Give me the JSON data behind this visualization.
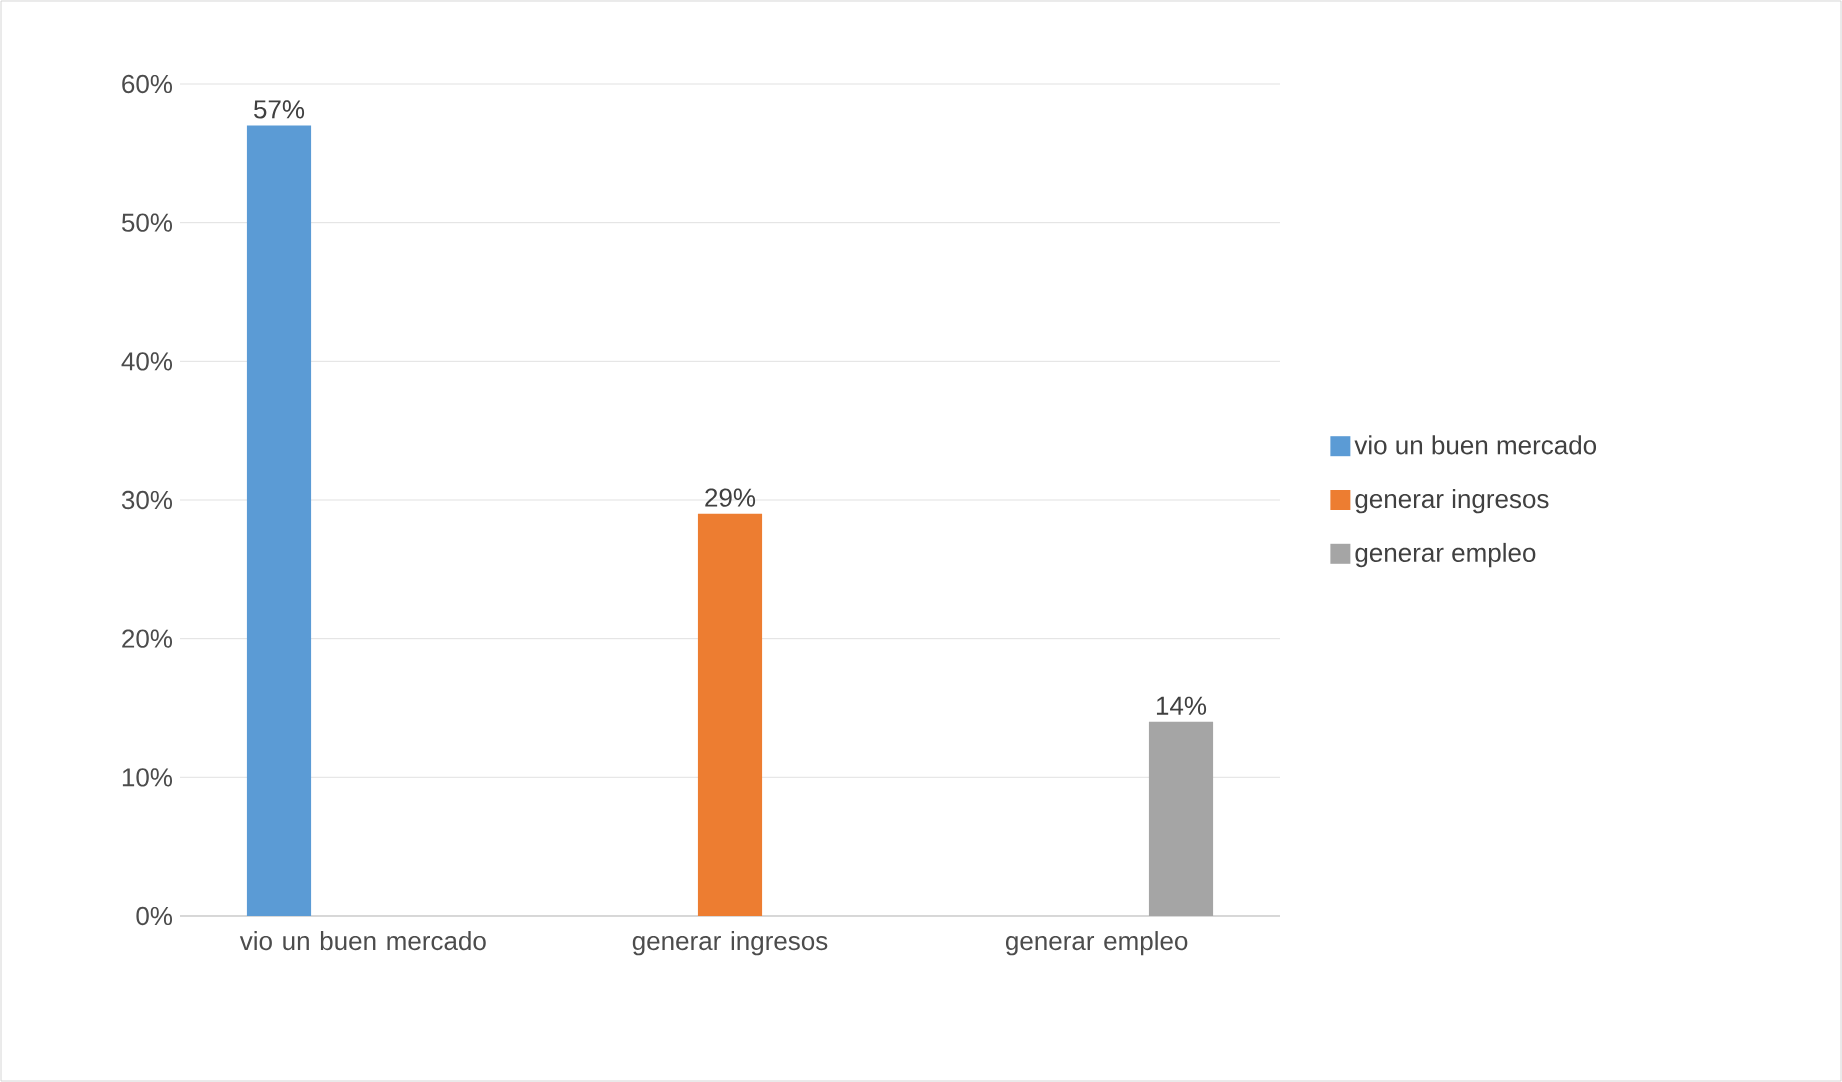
{
  "chart_data": {
    "type": "bar",
    "categories": [
      "vio un buen mercado",
      "generar ingresos",
      "generar empleo"
    ],
    "series": [
      {
        "name": "vio un buen mercado",
        "color": "#5b9bd5",
        "values": [
          57,
          null,
          null
        ],
        "value_labels": [
          "57%",
          null,
          null
        ]
      },
      {
        "name": "generar ingresos",
        "color": "#ed7d31",
        "values": [
          null,
          29,
          null
        ],
        "value_labels": [
          null,
          "29%",
          null
        ]
      },
      {
        "name": "generar empleo",
        "color": "#a5a5a5",
        "values": [
          null,
          null,
          14
        ],
        "value_labels": [
          null,
          null,
          "14%"
        ]
      }
    ],
    "ylim": [
      0,
      60
    ],
    "yticks": [
      {
        "value": 0,
        "label": "0%"
      },
      {
        "value": 10,
        "label": "10%"
      },
      {
        "value": 20,
        "label": "20%"
      },
      {
        "value": 30,
        "label": "30%"
      },
      {
        "value": 40,
        "label": "40%"
      },
      {
        "value": 50,
        "label": "50%"
      },
      {
        "value": 60,
        "label": "60%"
      }
    ],
    "grid": "y",
    "legend": "right"
  }
}
